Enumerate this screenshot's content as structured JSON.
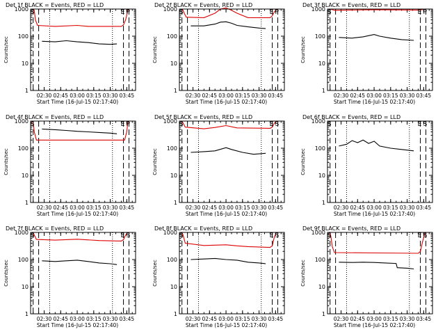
{
  "colors": {
    "events": "#000000",
    "lld": "#dd0000",
    "axis": "#000000",
    "background": "#ffffff"
  },
  "shared": {
    "ylabel": "Counts/sec",
    "xlabel": "Start Time (16-Jul-15 02:17:40)",
    "xticks": [
      "02:30",
      "02:45",
      "03:00",
      "03:15",
      "03:30",
      "03:45"
    ],
    "yticks": [
      "1",
      "10",
      "100",
      "1000"
    ],
    "marker_S": "S",
    "marker_E": "E",
    "marker_P": "P",
    "marker_B": "B"
  },
  "chart_data": [
    {
      "type": "line",
      "title": "Det 1f BLACK = Events, RED = LLD",
      "xlim": [
        "02:17:40",
        "03:53:00"
      ],
      "ylim": [
        1,
        1000
      ],
      "log_y": true,
      "markers": [
        "S",
        "E",
        "P"
      ],
      "vlines_dashed": [
        "02:20",
        "02:25",
        "03:42",
        "03:47"
      ],
      "vlines_dotted": [
        "02:35",
        "03:32"
      ],
      "series": [
        {
          "name": "LLD",
          "color": "red",
          "x": [
            "02:20",
            "02:21",
            "02:22",
            "02:24",
            "02:40",
            "03:00",
            "03:10",
            "03:40",
            "03:42",
            "03:44",
            "03:46",
            "03:47"
          ],
          "y": [
            1000,
            900,
            400,
            250,
            230,
            250,
            230,
            230,
            260,
            400,
            900,
            1000
          ]
        },
        {
          "name": "Events",
          "color": "black",
          "x": [
            "02:28",
            "02:40",
            "02:50",
            "03:00",
            "03:10",
            "03:20",
            "03:30",
            "03:36"
          ],
          "y": [
            65,
            62,
            68,
            62,
            58,
            52,
            50,
            52
          ]
        }
      ]
    },
    {
      "type": "line",
      "title": "Det 2f BLACK = Events, RED = LLD",
      "xlim": [
        "02:17:40",
        "03:53:00"
      ],
      "ylim": [
        1,
        1000
      ],
      "log_y": true,
      "markers": [
        "S",
        "E",
        "P"
      ],
      "vlines_dashed": [
        "02:20",
        "02:25",
        "03:42",
        "03:47"
      ],
      "vlines_dotted": [
        "02:35",
        "03:32"
      ],
      "series": [
        {
          "name": "LLD",
          "color": "red",
          "x": [
            "02:20",
            "02:21",
            "02:22",
            "02:24",
            "02:40",
            "02:50",
            "02:55",
            "03:00",
            "03:05",
            "03:10",
            "03:20",
            "03:40",
            "03:42",
            "03:44",
            "03:46",
            "03:47"
          ],
          "y": [
            1000,
            900,
            700,
            500,
            480,
            700,
            1000,
            1100,
            900,
            700,
            480,
            480,
            560,
            800,
            950,
            1000
          ]
        },
        {
          "name": "Events",
          "color": "black",
          "x": [
            "02:28",
            "02:40",
            "02:50",
            "02:55",
            "03:00",
            "03:05",
            "03:10",
            "03:20",
            "03:30",
            "03:36"
          ],
          "y": [
            240,
            240,
            280,
            330,
            340,
            300,
            250,
            220,
            200,
            190
          ]
        }
      ]
    },
    {
      "type": "line",
      "title": "Det 3f BLACK = Events, RED = LLD",
      "xlim": [
        "02:17:40",
        "03:53:00"
      ],
      "ylim": [
        1,
        1000
      ],
      "log_y": true,
      "markers": [
        "S",
        "E",
        "P"
      ],
      "vlines_dashed": [
        "02:20",
        "02:25",
        "03:42",
        "03:47"
      ],
      "vlines_dotted": [
        "02:35",
        "03:32"
      ],
      "series": [
        {
          "name": "LLD",
          "color": "red",
          "x": [
            "02:20",
            "02:22",
            "02:24",
            "03:00",
            "03:40",
            "03:43",
            "03:47"
          ],
          "y": [
            1000,
            950,
            900,
            950,
            920,
            950,
            1000
          ]
        },
        {
          "name": "Events",
          "color": "black",
          "x": [
            "02:28",
            "02:40",
            "02:50",
            "03:00",
            "03:05",
            "03:15",
            "03:25",
            "03:36"
          ],
          "y": [
            90,
            85,
            95,
            115,
            100,
            85,
            75,
            70
          ]
        }
      ]
    },
    {
      "type": "line",
      "title": "Det 4f BLACK = Events, RED = LLD",
      "xlim": [
        "02:17:40",
        "03:53:00"
      ],
      "ylim": [
        1,
        1000
      ],
      "log_y": true,
      "markers": [
        "S",
        "E",
        "P"
      ],
      "vlines_dashed": [
        "02:20",
        "02:25",
        "03:42",
        "03:47"
      ],
      "vlines_dotted": [
        "02:35",
        "03:32"
      ],
      "series": [
        {
          "name": "LLD",
          "color": "red",
          "x": [
            "02:19",
            "02:20",
            "02:21",
            "02:23",
            "03:43",
            "03:45",
            "03:46",
            "03:47"
          ],
          "y": [
            1000,
            900,
            400,
            200,
            200,
            400,
            900,
            1000
          ]
        },
        {
          "name": "Events",
          "color": "black",
          "x": [
            "02:28",
            "02:40",
            "02:50",
            "03:00",
            "03:10",
            "03:20",
            "03:30",
            "03:36"
          ],
          "y": [
            510,
            480,
            450,
            420,
            400,
            380,
            360,
            340
          ]
        }
      ]
    },
    {
      "type": "line",
      "title": "Det 5f BLACK = Events, RED = LLD",
      "xlim": [
        "02:17:40",
        "03:53:00"
      ],
      "ylim": [
        1,
        1000
      ],
      "log_y": true,
      "markers": [
        "S",
        "E",
        "S"
      ],
      "vlines_dashed": [
        "02:20",
        "02:25",
        "03:42",
        "03:47"
      ],
      "vlines_dotted": [
        "02:35",
        "03:32"
      ],
      "series": [
        {
          "name": "LLD",
          "color": "red",
          "x": [
            "02:20",
            "02:21",
            "02:23",
            "02:40",
            "02:50",
            "03:00",
            "03:10",
            "03:40",
            "03:42",
            "03:44",
            "03:46"
          ],
          "y": [
            1000,
            850,
            600,
            520,
            580,
            680,
            560,
            540,
            600,
            850,
            1000
          ]
        },
        {
          "name": "Events",
          "color": "black",
          "x": [
            "02:28",
            "02:40",
            "02:50",
            "03:00",
            "03:05",
            "03:15",
            "03:25",
            "03:36"
          ],
          "y": [
            70,
            75,
            80,
            105,
            90,
            70,
            60,
            65
          ]
        }
      ]
    },
    {
      "type": "line",
      "title": "Det 6f BLACK = Events, RED = LLD",
      "xlim": [
        "02:17:40",
        "03:53:00"
      ],
      "ylim": [
        1,
        1000
      ],
      "log_y": true,
      "markers": [
        "S",
        "E",
        "S"
      ],
      "vlines_dashed": [
        "02:20",
        "02:25",
        "03:42",
        "03:47"
      ],
      "vlines_dotted": [
        "02:35",
        "03:32"
      ],
      "series": [
        {
          "name": "Events",
          "color": "black",
          "x": [
            "02:28",
            "02:35",
            "02:40",
            "02:45",
            "02:50",
            "02:55",
            "03:00",
            "03:05",
            "03:15",
            "03:25",
            "03:36"
          ],
          "y": [
            120,
            140,
            190,
            160,
            200,
            150,
            180,
            120,
            100,
            90,
            80
          ]
        }
      ]
    },
    {
      "type": "line",
      "title": "Det 7f BLACK = Events, RED = LLD",
      "xlim": [
        "02:17:40",
        "03:53:00"
      ],
      "ylim": [
        1,
        1000
      ],
      "log_y": true,
      "markers": [
        "S",
        "E",
        "S"
      ],
      "vlines_dashed": [
        "02:20",
        "02:25",
        "03:42",
        "03:47"
      ],
      "vlines_dotted": [
        "02:35",
        "03:32"
      ],
      "series": [
        {
          "name": "LLD",
          "color": "red",
          "x": [
            "02:20",
            "02:21",
            "02:23",
            "02:40",
            "03:00",
            "03:20",
            "03:40",
            "03:42",
            "03:44",
            "03:46"
          ],
          "y": [
            1000,
            800,
            550,
            520,
            560,
            500,
            480,
            540,
            800,
            1000
          ]
        },
        {
          "name": "Events",
          "color": "black",
          "x": [
            "02:28",
            "02:40",
            "02:50",
            "03:00",
            "03:10",
            "03:20",
            "03:30",
            "03:36"
          ],
          "y": [
            90,
            85,
            90,
            95,
            85,
            75,
            70,
            65
          ]
        }
      ]
    },
    {
      "type": "line",
      "title": "Det 8f BLACK = Events, RED = LLD",
      "xlim": [
        "02:17:40",
        "03:53:00"
      ],
      "ylim": [
        1,
        1000
      ],
      "log_y": true,
      "markers": [
        "S",
        "E",
        "S"
      ],
      "vlines_dashed": [
        "02:20",
        "02:25",
        "03:42",
        "03:47"
      ],
      "vlines_dotted": [
        "02:35",
        "03:32"
      ],
      "series": [
        {
          "name": "LLD",
          "color": "red",
          "x": [
            "02:20",
            "02:21",
            "02:23",
            "02:40",
            "02:50",
            "03:00",
            "03:10",
            "03:20",
            "03:40",
            "03:42",
            "03:44",
            "03:46"
          ],
          "y": [
            1000,
            800,
            400,
            330,
            340,
            350,
            320,
            300,
            280,
            320,
            700,
            1000
          ]
        },
        {
          "name": "Events",
          "color": "black",
          "x": [
            "02:28",
            "02:40",
            "02:50",
            "03:00",
            "03:10",
            "03:20",
            "03:30",
            "03:36"
          ],
          "y": [
            100,
            105,
            110,
            100,
            95,
            80,
            75,
            70
          ]
        }
      ]
    },
    {
      "type": "line",
      "title": "Det 9f BLACK = Events, RED = LLD",
      "xlim": [
        "02:17:40",
        "03:53:00"
      ],
      "ylim": [
        1,
        1000
      ],
      "log_y": true,
      "markers": [
        "S",
        "E",
        "S"
      ],
      "vlines_dashed": [
        "02:20",
        "02:25",
        "03:42",
        "03:47"
      ],
      "vlines_dotted": [
        "02:35",
        "03:32"
      ],
      "series": [
        {
          "name": "LLD",
          "color": "red",
          "x": [
            "02:20",
            "02:21",
            "02:22",
            "02:24",
            "03:00",
            "03:40",
            "03:42",
            "03:44",
            "03:46",
            "03:47"
          ],
          "y": [
            1000,
            600,
            300,
            180,
            175,
            170,
            200,
            450,
            900,
            1000
          ]
        },
        {
          "name": "Events",
          "color": "black",
          "x": [
            "02:28",
            "02:40",
            "02:50",
            "03:00",
            "03:10",
            "03:20",
            "03:21",
            "03:30",
            "03:36"
          ],
          "y": [
            80,
            78,
            80,
            78,
            75,
            72,
            50,
            48,
            45
          ]
        }
      ]
    }
  ]
}
